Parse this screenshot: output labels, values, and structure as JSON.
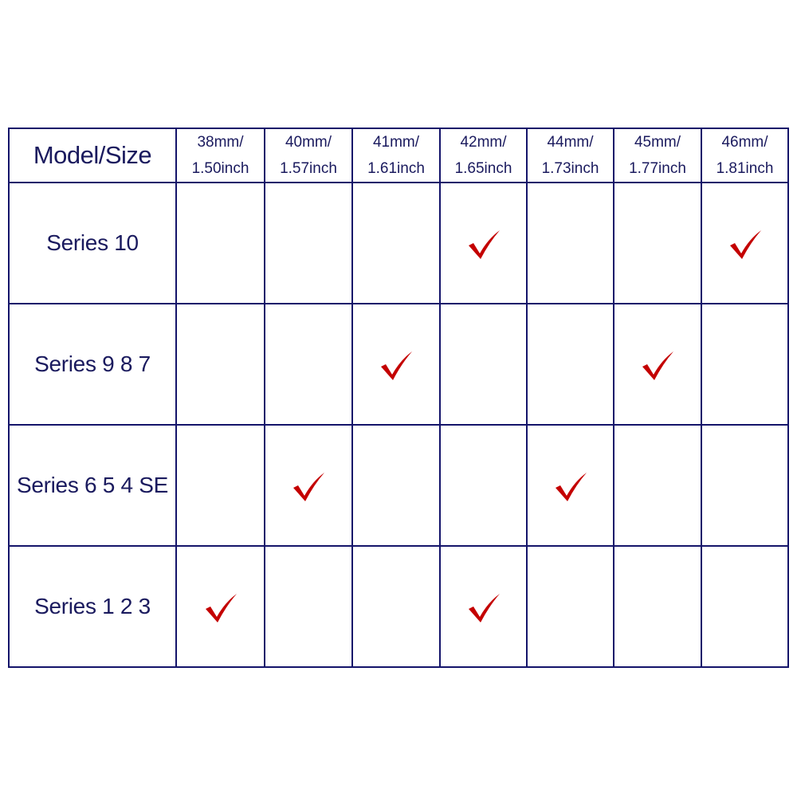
{
  "table": {
    "corner_label": "Model/Size",
    "sizes": [
      {
        "mm": "38mm/",
        "inch": "1.50inch"
      },
      {
        "mm": "40mm/",
        "inch": "1.57inch"
      },
      {
        "mm": "41mm/",
        "inch": "1.61inch"
      },
      {
        "mm": "42mm/",
        "inch": "1.65inch"
      },
      {
        "mm": "44mm/",
        "inch": "1.73inch"
      },
      {
        "mm": "45mm/",
        "inch": "1.77inch"
      },
      {
        "mm": "46mm/",
        "inch": "1.81inch"
      }
    ],
    "rows": [
      {
        "model": "Series 10",
        "fits": [
          false,
          false,
          false,
          true,
          false,
          false,
          true
        ]
      },
      {
        "model": "Series 9 8 7",
        "fits": [
          false,
          false,
          true,
          false,
          false,
          true,
          false
        ]
      },
      {
        "model": "Series 6 5 4 SE",
        "fits": [
          false,
          true,
          false,
          false,
          true,
          false,
          false
        ]
      },
      {
        "model": "Series 1 2 3",
        "fits": [
          true,
          false,
          false,
          true,
          false,
          false,
          false
        ]
      }
    ],
    "check_icon": "checkmark-icon",
    "colors": {
      "text": "#1a1a5e",
      "border": "#14146a",
      "check": "#c40000"
    }
  }
}
